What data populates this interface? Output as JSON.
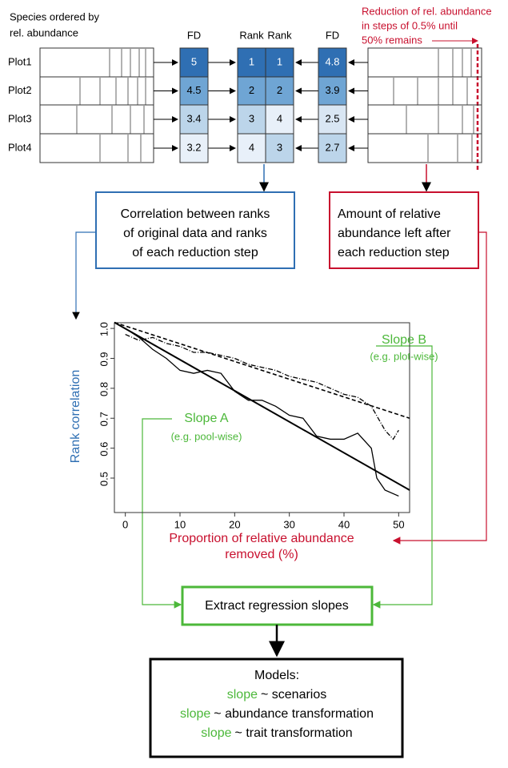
{
  "header": {
    "species_label": [
      "Species ordered by",
      "rel. abundance"
    ],
    "reduction_note": [
      "Reduction of rel. abundance",
      "in steps of 0.5% until",
      "50% remains"
    ]
  },
  "plots": [
    "Plot1",
    "Plot2",
    "Plot3",
    "Plot4"
  ],
  "columns": [
    {
      "header": "FD",
      "values": [
        5,
        4.5,
        3.4,
        3.2
      ],
      "colors": [
        "#2f6fb3",
        "#6fa5d4",
        "#bcd5ea",
        "#e8f0f9"
      ]
    },
    {
      "header": "Rank",
      "values": [
        1,
        2,
        3,
        4
      ],
      "colors": [
        "#2f6fb3",
        "#6fa5d4",
        "#bcd5ea",
        "#e8f0f9"
      ]
    },
    {
      "header": "Rank",
      "values": [
        1,
        2,
        4,
        3
      ],
      "colors": [
        "#2f6fb3",
        "#6fa5d4",
        "#e8f0f9",
        "#bcd5ea"
      ]
    },
    {
      "header": "FD",
      "values": [
        4.8,
        3.9,
        2.5,
        2.7
      ],
      "colors": [
        "#2f6fb3",
        "#6fa5d4",
        "#d9e6f3",
        "#bcd5ea"
      ]
    }
  ],
  "boxes": {
    "correlation": [
      "Correlation between ranks",
      "of original data and ranks",
      "of each reduction step"
    ],
    "amount": [
      "Amount of relative",
      "abundance left after",
      "each reduction step"
    ],
    "extract": "Extract regression slopes",
    "models": {
      "title": "Models:",
      "lines": [
        {
          "keyword": "slope",
          "text": "~ scenarios"
        },
        {
          "keyword": "slope",
          "text": "~ abundance transformation"
        },
        {
          "keyword": "slope",
          "text": "~ trait transformation"
        }
      ]
    }
  },
  "plot": {
    "ylabel": "Rank correlation",
    "xlabel": [
      "Proportion of relative abundance",
      "removed (%)"
    ],
    "xlim": [
      -2,
      52
    ],
    "ylim": [
      0.385,
      1.019
    ],
    "xticks": [
      0,
      10,
      20,
      30,
      40,
      50
    ],
    "yticks": [
      0.5,
      0.6,
      0.7,
      0.8,
      0.9,
      {
        "value": 1,
        "label": "1.0"
      }
    ],
    "slope_b": [
      "Slope B",
      "(e.g. plot-wise)"
    ],
    "slope_a": [
      "Slope A",
      "(e.g. pool-wise)"
    ],
    "series": [
      {
        "style": "solid",
        "x": [
          0,
          2.5,
          5,
          7.5,
          10,
          12.5,
          15,
          17.5,
          20,
          22.5,
          25,
          27.5,
          30,
          32.5,
          35,
          37.5,
          40,
          42.5,
          45,
          46,
          47.5,
          50
        ],
        "values": [
          1.0,
          0.97,
          0.93,
          0.9,
          0.86,
          0.85,
          0.86,
          0.85,
          0.79,
          0.76,
          0.76,
          0.74,
          0.71,
          0.7,
          0.64,
          0.63,
          0.63,
          0.65,
          0.6,
          0.5,
          0.46,
          0.44
        ]
      },
      {
        "style": "dashdot",
        "x": [
          0,
          2.5,
          5,
          7.5,
          10,
          12.5,
          15,
          17.5,
          20,
          22.5,
          25,
          27.5,
          30,
          32.5,
          35,
          37.5,
          40,
          42.5,
          45,
          47.5,
          49,
          50
        ],
        "values": [
          0.98,
          0.96,
          0.97,
          0.95,
          0.94,
          0.92,
          0.92,
          0.91,
          0.9,
          0.88,
          0.87,
          0.86,
          0.84,
          0.83,
          0.82,
          0.8,
          0.78,
          0.77,
          0.74,
          0.66,
          0.63,
          0.66
        ]
      },
      {
        "style": "fit",
        "x": [
          -2,
          52
        ],
        "values": [
          1.02,
          0.46
        ]
      },
      {
        "style": "fitdash",
        "x": [
          -2,
          52
        ],
        "values": [
          1.02,
          0.7
        ]
      }
    ]
  }
}
